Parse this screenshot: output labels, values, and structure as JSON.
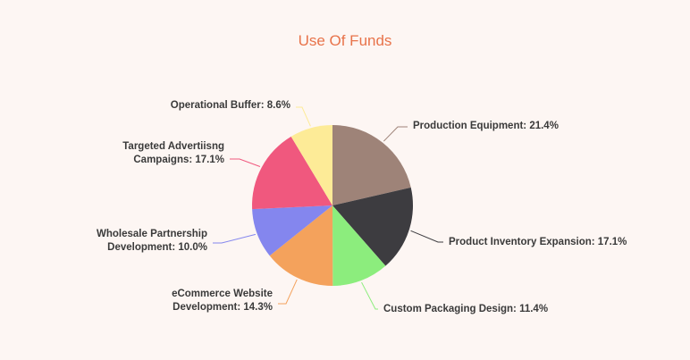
{
  "chart_data": {
    "type": "pie",
    "title": "Use Of Funds",
    "slices": [
      {
        "label": "Production Equipment",
        "value": 21.4,
        "display": "21.4%",
        "color": "#9e8378"
      },
      {
        "label": "Product Inventory Expansion",
        "value": 17.1,
        "display": "17.1%",
        "color": "#3d3c40"
      },
      {
        "label": "Custom Packaging Design",
        "value": 11.4,
        "display": "11.4%",
        "color": "#8ced7d"
      },
      {
        "label": "eCommerce Website Development",
        "value": 14.3,
        "display": "14.3%",
        "color": "#f4a25c"
      },
      {
        "label": "Wholesale Partnership Development",
        "value": 10.0,
        "display": "10.0%",
        "color": "#8486ee"
      },
      {
        "label": "Targeted Advertiisng Campaigns",
        "value": 17.1,
        "display": "17.1%",
        "color": "#f0587e"
      },
      {
        "label": "Operational Buffer",
        "value": 8.6,
        "display": "8.6%",
        "color": "#fdeb97"
      }
    ]
  }
}
